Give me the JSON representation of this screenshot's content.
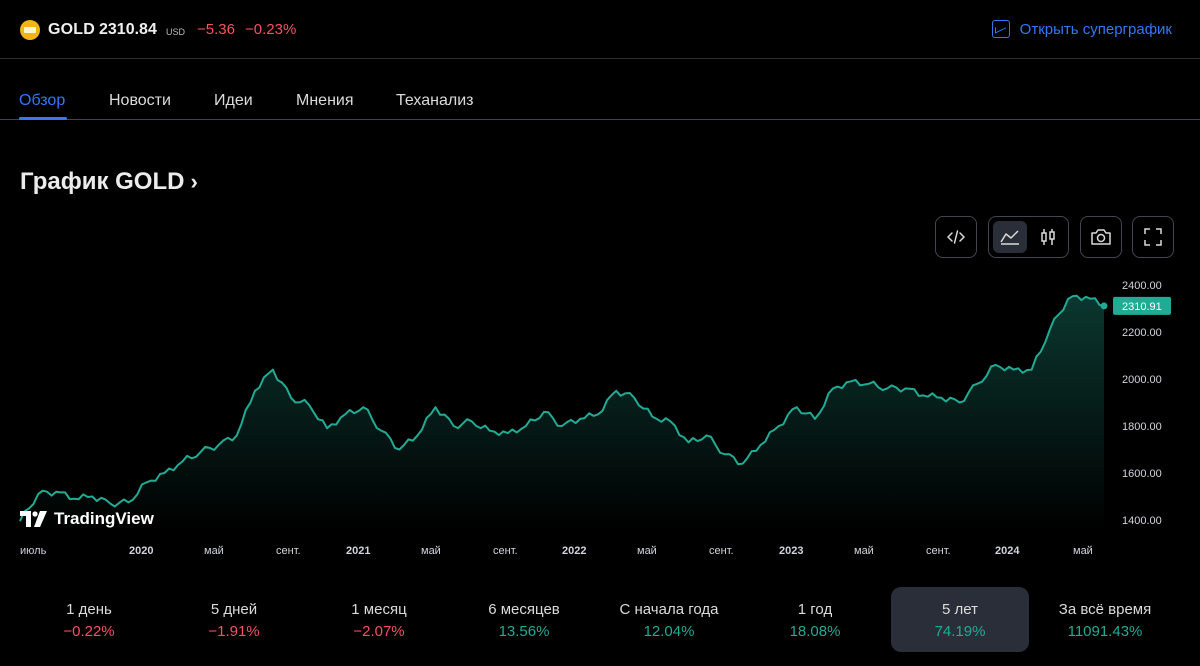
{
  "header": {
    "symbol": "GOLD",
    "price": "2310.84",
    "currency": "USD",
    "change": "−5.36",
    "change_percent": "−0.23%",
    "superchart_label": "Открыть суперграфик"
  },
  "tabs": [
    {
      "label": "Обзор",
      "active": true
    },
    {
      "label": "Новости",
      "active": false
    },
    {
      "label": "Идеи",
      "active": false
    },
    {
      "label": "Мнения",
      "active": false
    },
    {
      "label": "Теханализ",
      "active": false
    }
  ],
  "chart_heading": "График GOLD",
  "toolbar": {
    "embed_icon": "code-icon",
    "area_icon": "area-chart-icon",
    "candles_icon": "candles-icon",
    "snapshot_icon": "camera-icon",
    "fullscreen_icon": "fullscreen-icon"
  },
  "watermark": "TradingView",
  "colors": {
    "accent": "#3179f5",
    "line": "#22ab94",
    "negative": "#f7525f",
    "positive": "#22ab94"
  },
  "chart_data": {
    "type": "area",
    "x_tick_labels": [
      "июль",
      "2020",
      "май",
      "сент.",
      "2021",
      "май",
      "сент.",
      "2022",
      "май",
      "сент.",
      "2023",
      "май",
      "сент.",
      "2024",
      "май"
    ],
    "y_ticks": [
      "2400.00",
      "2200.00",
      "2000.00",
      "1800.00",
      "1600.00",
      "1400.00"
    ],
    "ylim": [
      1400,
      2400
    ],
    "last_value_label": "2310.91",
    "grid": false,
    "x": [
      "2019-06",
      "2019-07",
      "2019-08",
      "2019-09",
      "2019-10",
      "2019-11",
      "2019-12",
      "2020-01",
      "2020-02",
      "2020-03",
      "2020-04",
      "2020-05",
      "2020-06",
      "2020-07",
      "2020-08",
      "2020-09",
      "2020-10",
      "2020-11",
      "2020-12",
      "2021-01",
      "2021-02",
      "2021-03",
      "2021-04",
      "2021-05",
      "2021-06",
      "2021-07",
      "2021-08",
      "2021-09",
      "2021-10",
      "2021-11",
      "2021-12",
      "2022-01",
      "2022-02",
      "2022-03",
      "2022-04",
      "2022-05",
      "2022-06",
      "2022-07",
      "2022-08",
      "2022-09",
      "2022-10",
      "2022-11",
      "2022-12",
      "2023-01",
      "2023-02",
      "2023-03",
      "2023-04",
      "2023-05",
      "2023-06",
      "2023-07",
      "2023-08",
      "2023-09",
      "2023-10",
      "2023-11",
      "2023-12",
      "2024-01",
      "2024-02",
      "2024-03",
      "2024-04",
      "2024-05",
      "2024-06"
    ],
    "values": [
      1395,
      1510,
      1520,
      1490,
      1500,
      1470,
      1475,
      1560,
      1600,
      1650,
      1690,
      1720,
      1760,
      1950,
      2040,
      1920,
      1890,
      1790,
      1850,
      1880,
      1780,
      1700,
      1760,
      1880,
      1800,
      1820,
      1780,
      1770,
      1800,
      1860,
      1800,
      1830,
      1850,
      1950,
      1920,
      1840,
      1820,
      1730,
      1760,
      1680,
      1640,
      1720,
      1800,
      1880,
      1830,
      1960,
      1990,
      1980,
      1960,
      1960,
      1930,
      1920,
      1900,
      1980,
      2060,
      2040,
      2040,
      2210,
      2340,
      2350,
      2310
    ]
  },
  "performance": [
    {
      "label": "1 день",
      "value": "−0.22%",
      "sign": "neg",
      "active": false
    },
    {
      "label": "5 дней",
      "value": "−1.91%",
      "sign": "neg",
      "active": false
    },
    {
      "label": "1 месяц",
      "value": "−2.07%",
      "sign": "neg",
      "active": false
    },
    {
      "label": "6 месяцев",
      "value": "13.56%",
      "sign": "pos",
      "active": false
    },
    {
      "label": "С начала года",
      "value": "12.04%",
      "sign": "pos",
      "active": false
    },
    {
      "label": "1 год",
      "value": "18.08%",
      "sign": "pos",
      "active": false
    },
    {
      "label": "5 лет",
      "value": "74.19%",
      "sign": "pos",
      "active": true
    },
    {
      "label": "За всё время",
      "value": "11091.43%",
      "sign": "pos",
      "active": false
    }
  ]
}
